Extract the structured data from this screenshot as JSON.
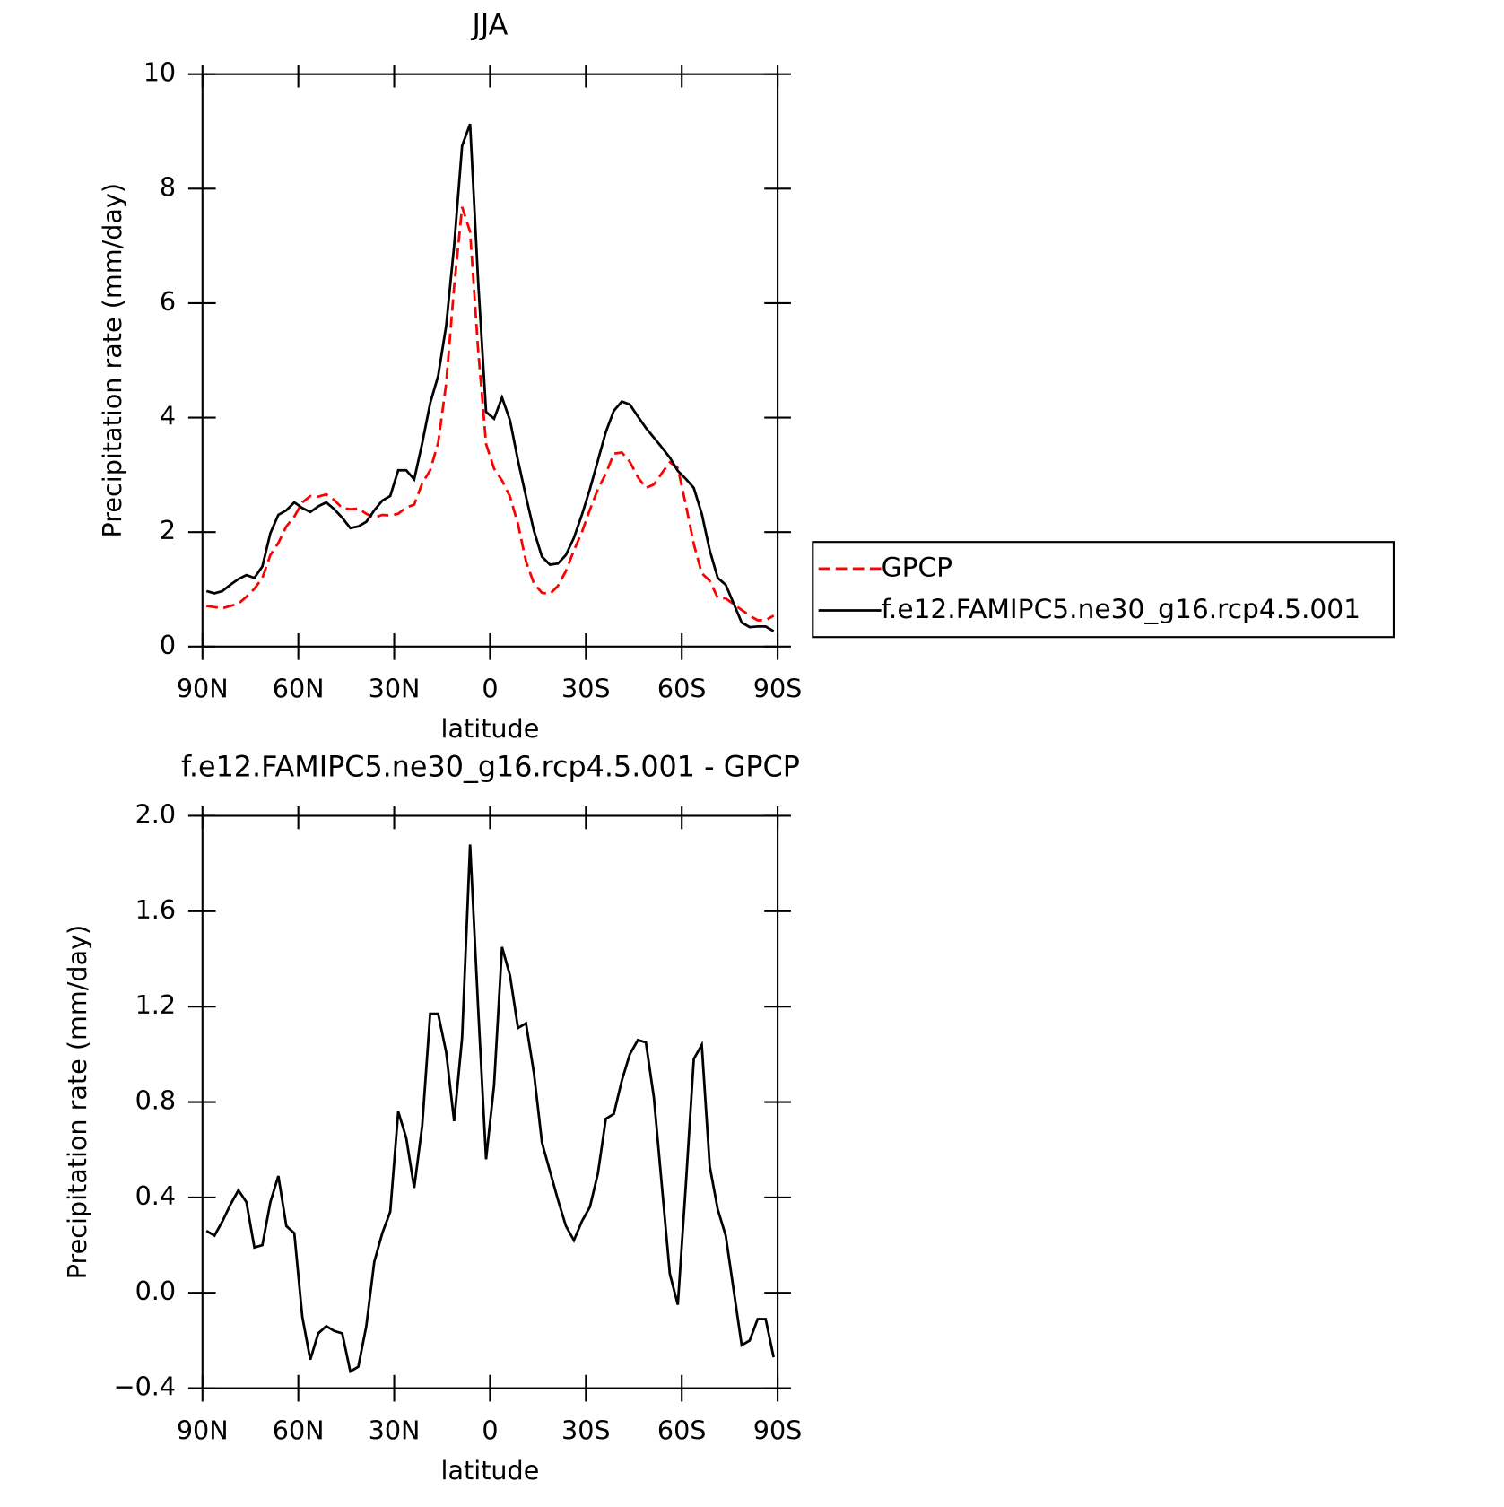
{
  "chart_data": [
    {
      "type": "line",
      "title": "JJA",
      "xlabel": "latitude",
      "ylabel": "Precipitation rate (mm/day)",
      "x": [
        88.75,
        86.25,
        83.75,
        81.25,
        78.75,
        76.25,
        73.75,
        71.25,
        68.75,
        66.25,
        63.75,
        61.25,
        58.75,
        56.25,
        53.75,
        51.25,
        48.75,
        46.25,
        43.75,
        41.25,
        38.75,
        36.25,
        33.75,
        31.25,
        28.75,
        26.25,
        23.75,
        21.25,
        18.75,
        16.25,
        13.75,
        11.25,
        8.75,
        6.25,
        3.75,
        1.25,
        -1.25,
        -3.75,
        -6.25,
        -8.75,
        -11.25,
        -13.75,
        -16.25,
        -18.75,
        -21.25,
        -23.75,
        -26.25,
        -28.75,
        -31.25,
        -33.75,
        -36.25,
        -38.75,
        -41.25,
        -43.75,
        -46.25,
        -48.75,
        -51.25,
        -53.75,
        -56.25,
        -58.75,
        -61.25,
        -63.75,
        -66.25,
        -68.75,
        -71.25,
        -73.75,
        -76.25,
        -78.75,
        -81.25,
        -83.75,
        -86.25,
        -88.75
      ],
      "series": [
        {
          "name": "GPCP",
          "color": "#ff0000",
          "line_style": "dashed",
          "values": [
            0.71,
            0.69,
            0.67,
            0.71,
            0.75,
            0.87,
            1.01,
            1.2,
            1.6,
            1.81,
            2.1,
            2.27,
            2.52,
            2.63,
            2.62,
            2.66,
            2.56,
            2.42,
            2.4,
            2.41,
            2.32,
            2.25,
            2.3,
            2.29,
            2.32,
            2.43,
            2.48,
            2.85,
            3.08,
            3.56,
            4.59,
            6.28,
            7.68,
            7.25,
            5.2,
            3.54,
            3.11,
            2.9,
            2.62,
            2.14,
            1.49,
            1.1,
            0.94,
            0.92,
            1.06,
            1.32,
            1.68,
            2.0,
            2.39,
            2.75,
            3.02,
            3.37,
            3.39,
            3.23,
            2.96,
            2.77,
            2.83,
            3.03,
            3.22,
            3.12,
            2.48,
            1.79,
            1.28,
            1.15,
            0.85,
            0.84,
            0.74,
            0.64,
            0.54,
            0.46,
            0.46,
            0.54
          ]
        },
        {
          "name": "f.e12.FAMIPC5.ne30_g16.rcp4.5.001",
          "color": "#000000",
          "line_style": "solid",
          "values": [
            0.97,
            0.93,
            0.97,
            1.08,
            1.18,
            1.25,
            1.2,
            1.4,
            1.98,
            2.3,
            2.38,
            2.52,
            2.42,
            2.35,
            2.45,
            2.52,
            2.4,
            2.25,
            2.07,
            2.1,
            2.18,
            2.38,
            2.55,
            2.63,
            3.08,
            3.08,
            2.92,
            3.55,
            4.25,
            4.73,
            5.6,
            7.0,
            8.75,
            9.13,
            6.4,
            4.1,
            3.98,
            4.35,
            3.95,
            3.25,
            2.62,
            2.02,
            1.57,
            1.43,
            1.45,
            1.6,
            1.9,
            2.3,
            2.75,
            3.25,
            3.75,
            4.12,
            4.28,
            4.23,
            4.02,
            3.82,
            3.65,
            3.48,
            3.3,
            3.07,
            2.93,
            2.77,
            2.32,
            1.68,
            1.2,
            1.08,
            0.75,
            0.42,
            0.34,
            0.35,
            0.35,
            0.27
          ]
        }
      ],
      "xlim": [
        90,
        -90
      ],
      "xticks": [
        {
          "value": 90,
          "label": "90N"
        },
        {
          "value": 60,
          "label": "60N"
        },
        {
          "value": 30,
          "label": "30N"
        },
        0,
        {
          "value": -30,
          "label": "30S"
        },
        {
          "value": -60,
          "label": "60S"
        },
        {
          "value": -90,
          "label": "90S"
        }
      ],
      "ylim": [
        0,
        10
      ],
      "yticks": [
        0,
        2,
        4,
        6,
        8,
        10
      ]
    },
    {
      "type": "line",
      "title": "f.e12.FAMIPC5.ne30_g16.rcp4.5.001 - GPCP",
      "xlabel": "latitude",
      "ylabel": "Precipitation rate (mm/day)",
      "x": [
        88.75,
        86.25,
        83.75,
        81.25,
        78.75,
        76.25,
        73.75,
        71.25,
        68.75,
        66.25,
        63.75,
        61.25,
        58.75,
        56.25,
        53.75,
        51.25,
        48.75,
        46.25,
        43.75,
        41.25,
        38.75,
        36.25,
        33.75,
        31.25,
        28.75,
        26.25,
        23.75,
        21.25,
        18.75,
        16.25,
        13.75,
        11.25,
        8.75,
        6.25,
        3.75,
        1.25,
        -1.25,
        -3.75,
        -6.25,
        -8.75,
        -11.25,
        -13.75,
        -16.25,
        -18.75,
        -21.25,
        -23.75,
        -26.25,
        -28.75,
        -31.25,
        -33.75,
        -36.25,
        -38.75,
        -41.25,
        -43.75,
        -46.25,
        -48.75,
        -51.25,
        -53.75,
        -56.25,
        -58.75,
        -61.25,
        -63.75,
        -66.25,
        -68.75,
        -71.25,
        -73.75,
        -76.25,
        -78.75,
        -81.25,
        -83.75,
        -86.25,
        -88.75
      ],
      "color": "#000000",
      "values": [
        0.26,
        0.24,
        0.3,
        0.37,
        0.43,
        0.38,
        0.19,
        0.2,
        0.38,
        0.49,
        0.28,
        0.25,
        -0.1,
        -0.28,
        -0.17,
        -0.14,
        -0.16,
        -0.17,
        -0.33,
        -0.31,
        -0.14,
        0.13,
        0.25,
        0.34,
        0.76,
        0.65,
        0.44,
        0.7,
        1.17,
        1.17,
        1.01,
        0.72,
        1.07,
        1.88,
        1.2,
        0.56,
        0.87,
        1.45,
        1.33,
        1.11,
        1.13,
        0.92,
        0.63,
        0.51,
        0.39,
        0.28,
        0.22,
        0.3,
        0.36,
        0.5,
        0.73,
        0.75,
        0.89,
        1.0,
        1.06,
        1.05,
        0.82,
        0.45,
        0.08,
        -0.05,
        0.45,
        0.98,
        1.04,
        0.53,
        0.35,
        0.24,
        0.01,
        -0.22,
        -0.2,
        -0.11,
        -0.11,
        -0.27
      ],
      "xlim": [
        90,
        -90
      ],
      "xticks": [
        {
          "value": 90,
          "label": "90N"
        },
        {
          "value": 60,
          "label": "60N"
        },
        {
          "value": 30,
          "label": "30N"
        },
        0,
        {
          "value": -30,
          "label": "30S"
        },
        {
          "value": -60,
          "label": "60S"
        },
        {
          "value": -90,
          "label": "90S"
        }
      ],
      "ylim": [
        -0.4,
        2.0
      ],
      "yticks": [
        {
          "value": -0.4,
          "label": "−0.4"
        },
        {
          "value": 0,
          "label": "0.0"
        },
        0.4,
        0.8,
        1.2,
        1.6,
        {
          "value": 2.0,
          "label": "2.0"
        }
      ]
    }
  ]
}
